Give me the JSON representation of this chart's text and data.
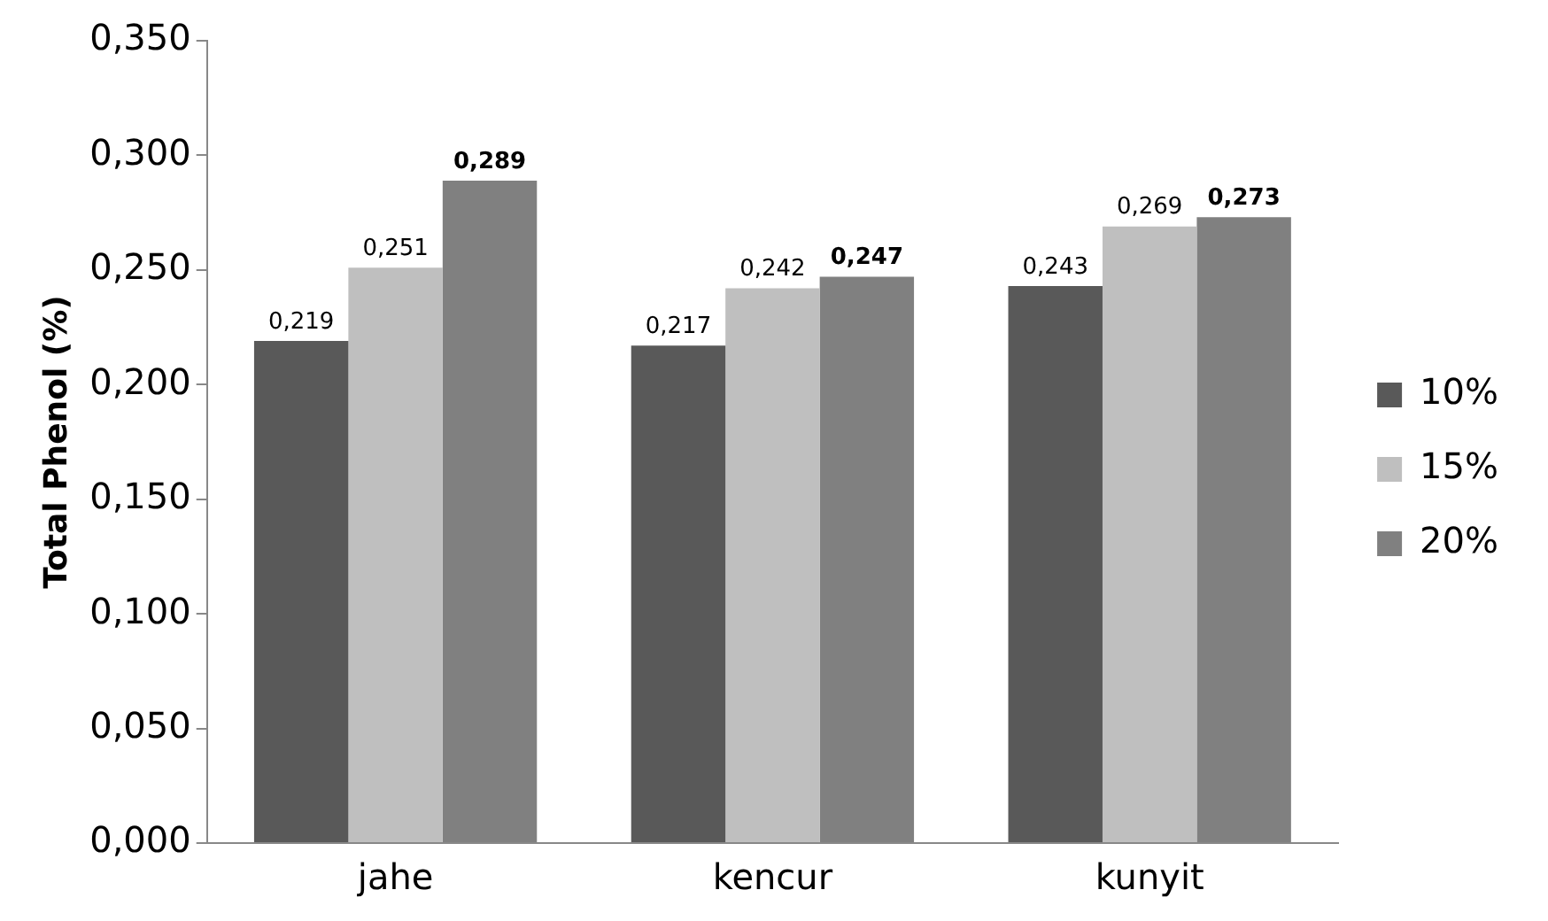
{
  "chart_data": {
    "type": "bar",
    "ylabel": "Total Phenol (%)",
    "categories": [
      "jahe",
      "kencur",
      "kunyit"
    ],
    "series": [
      {
        "name": "10%",
        "color": "#595959",
        "values": [
          0.219,
          0.217,
          0.243
        ],
        "value_labels": [
          "0,219",
          "0,217",
          "0,243"
        ]
      },
      {
        "name": "15%",
        "color": "#bfbfbf",
        "values": [
          0.251,
          0.242,
          0.269
        ],
        "value_labels": [
          "0,251",
          "0,242",
          "0,269"
        ]
      },
      {
        "name": "20%",
        "color": "#808080",
        "values": [
          0.289,
          0.247,
          0.273
        ],
        "value_labels": [
          "0,289",
          "0,247",
          "0,273"
        ]
      }
    ],
    "ylim": [
      0,
      0.35
    ],
    "yticks": [
      {
        "value": 0,
        "label": "0,000"
      },
      {
        "value": 0.05,
        "label": "0,050"
      },
      {
        "value": 0.1,
        "label": "0,100"
      },
      {
        "value": 0.15,
        "label": "0,150"
      },
      {
        "value": 0.2,
        "label": "0,200"
      },
      {
        "value": 0.25,
        "label": "0,250"
      },
      {
        "value": 0.3,
        "label": "0,300"
      },
      {
        "value": 0.35,
        "label": "0,350"
      }
    ],
    "grid": false,
    "legend": "right"
  }
}
